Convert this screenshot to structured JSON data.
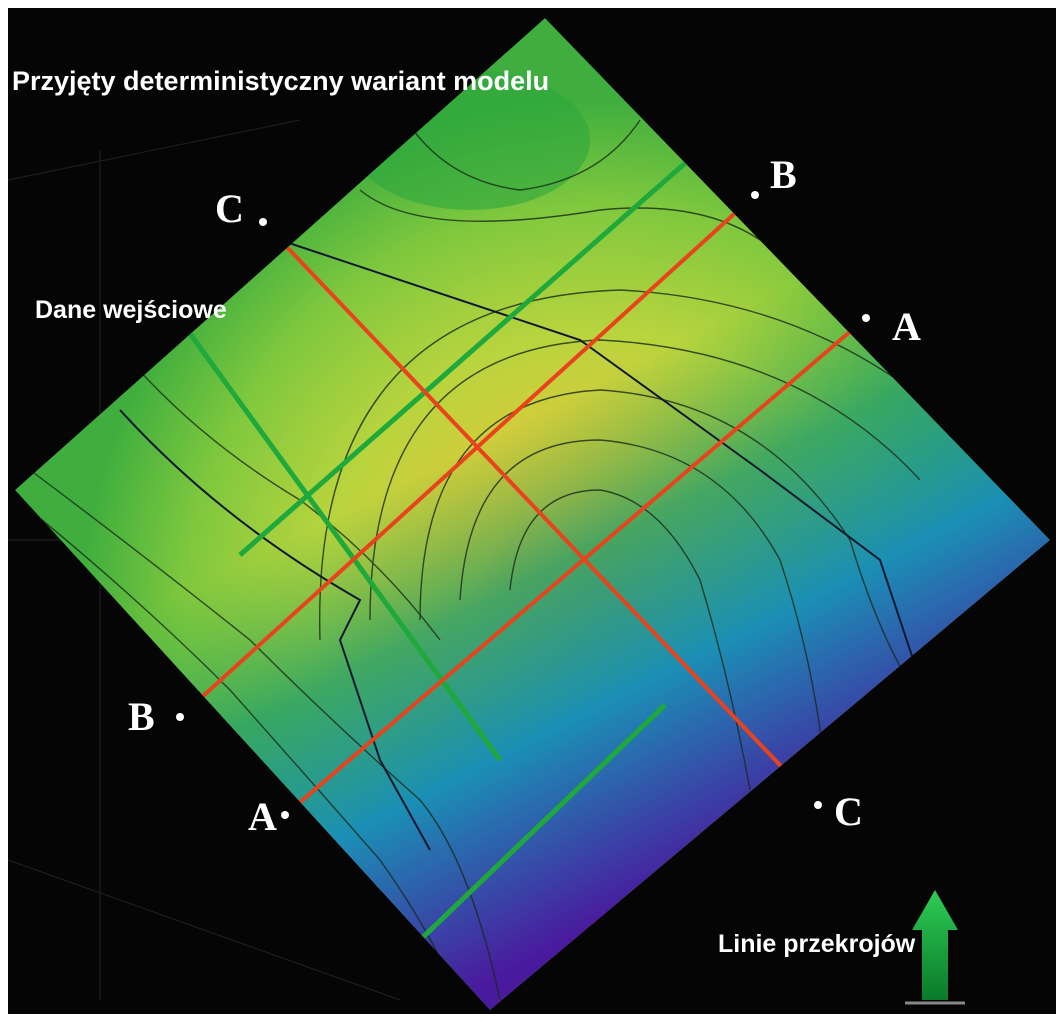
{
  "header": {
    "title": "Przyjęty deterministyczny wariant modelu"
  },
  "labels": {
    "input_data": "Dane wejściowe",
    "section_lines": "Linie przekrojów"
  },
  "sections": [
    {
      "label": "A"
    },
    {
      "label": "B"
    },
    {
      "label": "C"
    }
  ]
}
